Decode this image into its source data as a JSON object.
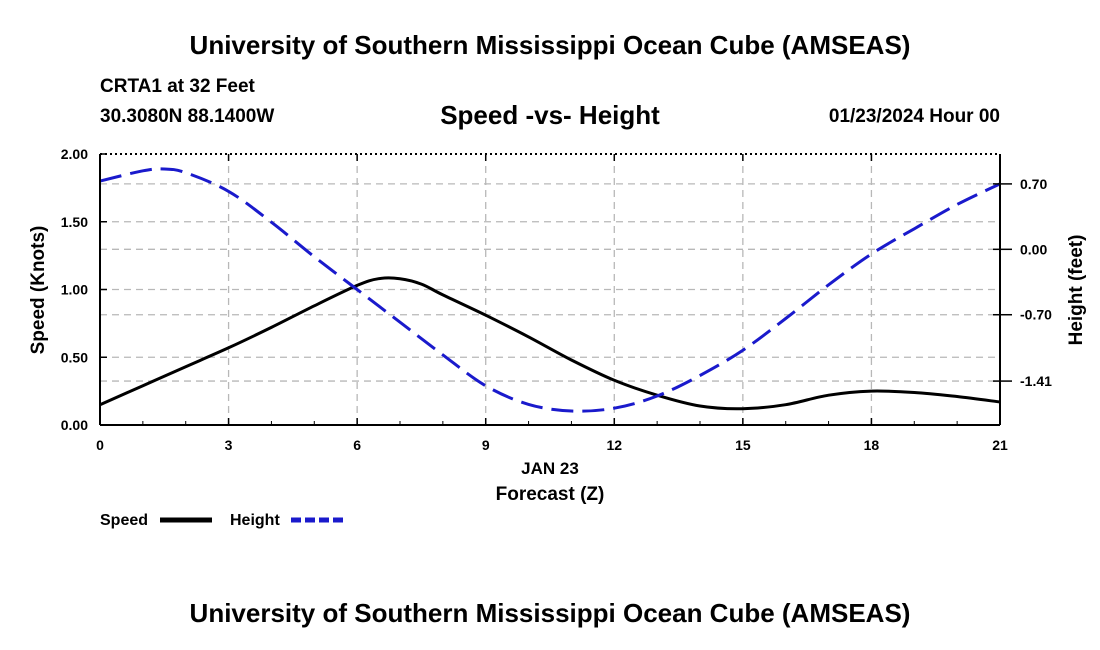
{
  "header": {
    "title_top": "University of Southern Mississippi Ocean Cube (AMSEAS)",
    "station": "CRTA1 at 32 Feet",
    "coords": "30.3080N  88.1400W",
    "subtitle": "Speed -vs- Height",
    "datetime": "01/23/2024 Hour 00"
  },
  "footer": {
    "title_bottom": "University of Southern Mississippi Ocean Cube (AMSEAS)"
  },
  "chart_data": {
    "type": "line",
    "title": "Speed -vs- Height",
    "xlabel_top": "JAN 23",
    "xlabel": "Forecast (Z)",
    "ylabel": "Speed (Knots)",
    "y2label": "Height (feet)",
    "xlim": [
      0,
      21
    ],
    "ylim": [
      0,
      2.0
    ],
    "y2lim": [
      -1.88,
      1.02
    ],
    "x_ticks": [
      0,
      3,
      6,
      9,
      12,
      15,
      18,
      21
    ],
    "x_tick_labels": [
      "0",
      "3",
      "6",
      "9",
      "12",
      "15",
      "18",
      "21"
    ],
    "y_ticks": [
      0,
      0.5,
      1.0,
      1.5,
      2.0
    ],
    "y_tick_labels": [
      "0.00",
      "0.50",
      "1.00",
      "1.50",
      "2.00"
    ],
    "y2_ticks": [
      0.7,
      0.0,
      -0.7,
      -1.41
    ],
    "y2_tick_labels": [
      "0.70",
      "0.00",
      "-0.70",
      "-1.41"
    ],
    "legend": [
      {
        "name": "Speed",
        "color": "#000000",
        "style": "solid"
      },
      {
        "name": "Height",
        "color": "#1a1acc",
        "style": "dashed"
      }
    ],
    "series": [
      {
        "name": "Speed",
        "axis": "left",
        "color": "#000000",
        "x": [
          0,
          1,
          2,
          3,
          4,
          5,
          6,
          6.5,
          7,
          7.5,
          8,
          9,
          10,
          11,
          12,
          13,
          14,
          15,
          16,
          17,
          18,
          19,
          20,
          21
        ],
        "values": [
          0.15,
          0.29,
          0.43,
          0.57,
          0.72,
          0.88,
          1.03,
          1.08,
          1.08,
          1.04,
          0.96,
          0.81,
          0.65,
          0.48,
          0.33,
          0.22,
          0.14,
          0.12,
          0.15,
          0.22,
          0.25,
          0.24,
          0.21,
          0.17
        ]
      },
      {
        "name": "Height",
        "axis": "right",
        "color": "#1a1acc",
        "x": [
          0,
          1,
          1.5,
          2,
          3,
          4,
          5,
          6,
          7,
          8,
          9,
          10,
          11,
          12,
          13,
          14,
          15,
          16,
          17,
          18,
          19,
          20,
          21
        ],
        "values": [
          0.73,
          0.84,
          0.86,
          0.82,
          0.62,
          0.29,
          -0.08,
          -0.43,
          -0.78,
          -1.13,
          -1.46,
          -1.66,
          -1.73,
          -1.7,
          -1.57,
          -1.35,
          -1.08,
          -0.74,
          -0.38,
          -0.05,
          0.22,
          0.48,
          0.7
        ]
      }
    ]
  }
}
